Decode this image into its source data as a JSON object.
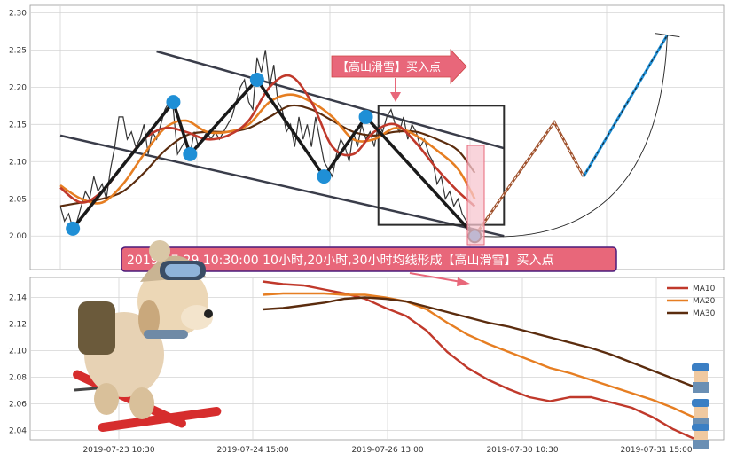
{
  "colors": {
    "price": "#333333",
    "ma10": "#c0392b",
    "ma20": "#e67e22",
    "ma30": "#5b2c0e",
    "zigzag": "#1a1a1a",
    "pivot": "#1f8fd6",
    "channel": "#3a3d4a",
    "annotation_fill": "#e8677a",
    "annotation_border": "#4a1a7a",
    "forecast_brown": "#a0522d",
    "forecast_blue": "#1f8fd6"
  },
  "annotations": {
    "top_label": "【高山滑雪】买入点",
    "bottom_label": "2019-07-29 10:30:00 10小时,20小时,30小时均线形成【高山滑雪】买入点"
  },
  "chart_data": [
    {
      "type": "line",
      "panel": "upper",
      "ylim": [
        1.955,
        2.31
      ],
      "yticks": [
        "2.30",
        "2.25",
        "2.20",
        "2.15",
        "2.10",
        "2.05",
        "2.00"
      ],
      "x_range": [
        0,
        100
      ],
      "series": [
        {
          "key": "price",
          "x": [
            0,
            1,
            2,
            3,
            4,
            5,
            6,
            7,
            8,
            9,
            10,
            11,
            12,
            13,
            14,
            15,
            16,
            17,
            18,
            19,
            20,
            21,
            22,
            23,
            24,
            25,
            26,
            27,
            28,
            29,
            30,
            31,
            32,
            33,
            34,
            35,
            36,
            37,
            38,
            39,
            40,
            41,
            42,
            43,
            44,
            45,
            46,
            47,
            48,
            49,
            50,
            51,
            52,
            53,
            54,
            55,
            56,
            57,
            58,
            59,
            60,
            61,
            62,
            63,
            64,
            65,
            66,
            67,
            68,
            69,
            70,
            71,
            72,
            73,
            74,
            75,
            76,
            77,
            78,
            79,
            80,
            81,
            82,
            83,
            84,
            85,
            86,
            87,
            88,
            89,
            90,
            91,
            92,
            93,
            94,
            95,
            96,
            97,
            98,
            99
          ],
          "y": [
            2.04,
            2.02,
            2.03,
            2.01,
            2.02,
            2.04,
            2.06,
            2.05,
            2.08,
            2.06,
            2.07,
            2.05,
            2.09,
            2.12,
            2.16,
            2.16,
            2.13,
            2.14,
            2.12,
            2.13,
            2.15,
            2.11,
            2.14,
            2.13,
            2.15,
            2.17,
            2.18,
            2.17,
            2.11,
            2.12,
            2.13,
            2.11,
            2.14,
            2.12,
            2.13,
            2.14,
            2.13,
            2.14,
            2.13,
            2.14,
            2.15,
            2.16,
            2.18,
            2.2,
            2.21,
            2.18,
            2.17,
            2.24,
            2.22,
            2.25,
            2.2,
            2.23,
            2.18,
            2.17,
            2.14,
            2.15,
            2.12,
            2.16,
            2.13,
            2.15,
            2.12,
            2.16,
            2.13,
            2.1,
            2.09,
            2.08,
            2.11,
            2.13,
            2.12,
            2.1,
            2.14,
            2.12,
            2.15,
            2.13,
            2.14,
            2.12,
            2.15,
            2.14,
            2.16,
            2.17,
            2.15,
            2.14,
            2.16,
            2.13,
            2.15,
            2.14,
            2.12,
            2.13,
            2.11,
            2.1,
            2.07,
            2.08,
            2.05,
            2.06,
            2.04,
            2.05,
            2.03,
            2.02,
            2.01,
            2.0
          ]
        },
        {
          "key": "ma10",
          "x": [
            0,
            5,
            10,
            15,
            20,
            25,
            30,
            35,
            40,
            45,
            50,
            55,
            60,
            65,
            70,
            75,
            80,
            85,
            90,
            95,
            99
          ],
          "y": [
            2.065,
            2.045,
            2.06,
            2.095,
            2.13,
            2.145,
            2.14,
            2.13,
            2.135,
            2.155,
            2.2,
            2.215,
            2.18,
            2.12,
            2.11,
            2.14,
            2.15,
            2.125,
            2.09,
            2.06,
            2.04
          ]
        },
        {
          "key": "ma20",
          "x": [
            0,
            5,
            10,
            15,
            20,
            25,
            30,
            35,
            40,
            45,
            50,
            55,
            60,
            65,
            70,
            75,
            80,
            85,
            90,
            95,
            99
          ],
          "y": [
            2.068,
            2.05,
            2.045,
            2.07,
            2.11,
            2.145,
            2.155,
            2.14,
            2.14,
            2.15,
            2.18,
            2.19,
            2.18,
            2.16,
            2.13,
            2.13,
            2.145,
            2.135,
            2.115,
            2.09,
            2.05
          ]
        },
        {
          "key": "ma30",
          "x": [
            0,
            5,
            10,
            15,
            20,
            25,
            30,
            35,
            40,
            45,
            50,
            55,
            60,
            65,
            70,
            75,
            80,
            85,
            90,
            95,
            99
          ],
          "y": [
            2.04,
            2.045,
            2.05,
            2.06,
            2.085,
            2.115,
            2.135,
            2.14,
            2.14,
            2.145,
            2.16,
            2.175,
            2.17,
            2.155,
            2.14,
            2.135,
            2.14,
            2.14,
            2.13,
            2.115,
            2.085
          ]
        }
      ],
      "zigzag": {
        "x": [
          3,
          27,
          31,
          47,
          63,
          73,
          99
        ],
        "y": [
          2.01,
          2.18,
          2.11,
          2.21,
          2.08,
          2.16,
          2.0
        ]
      },
      "channel": {
        "upper": {
          "x": [
            23,
            106
          ],
          "y": [
            2.248,
            2.118
          ]
        },
        "lower": {
          "x": [
            0,
            106
          ],
          "y": [
            2.135,
            2.0
          ]
        }
      },
      "box": {
        "x": [
          76,
          106
        ],
        "y": [
          2.015,
          2.175
        ]
      },
      "forecast": {
        "brown": {
          "x": [
            99,
            118,
            125
          ],
          "y": [
            2.0,
            2.153,
            2.08
          ]
        },
        "blue": {
          "x": [
            125,
            145
          ],
          "y": [
            2.08,
            2.27
          ]
        },
        "curve_start": {
          "x": 99,
          "y": 2.0
        }
      }
    },
    {
      "type": "line",
      "panel": "lower",
      "ylim": [
        2.033,
        2.155
      ],
      "yticks": [
        "2.14",
        "2.12",
        "2.10",
        "2.08",
        "2.06",
        "2.04"
      ],
      "xticks": [
        "2019-07-23 10:30",
        "2019-07-24 15:00",
        "2019-07-26 13:00",
        "2019-07-30 10:30",
        "2019-07-31 15:00"
      ],
      "legend": [
        "MA10",
        "MA20",
        "MA30"
      ],
      "legend_position": "top-right",
      "series": [
        {
          "key": "ma10",
          "name": "MA10",
          "x": [
            0,
            4,
            8,
            12,
            16,
            20,
            24,
            28,
            32,
            36,
            40,
            44,
            48,
            52,
            56,
            60,
            64,
            68,
            72,
            76,
            80,
            84
          ],
          "y": [
            2.152,
            2.15,
            2.149,
            2.146,
            2.143,
            2.139,
            2.132,
            2.126,
            2.115,
            2.099,
            2.087,
            2.078,
            2.071,
            2.065,
            2.062,
            2.065,
            2.065,
            2.061,
            2.057,
            2.05,
            2.041,
            2.034
          ]
        },
        {
          "key": "ma20",
          "name": "MA20",
          "x": [
            0,
            4,
            8,
            12,
            16,
            20,
            24,
            28,
            32,
            36,
            40,
            44,
            48,
            52,
            56,
            60,
            64,
            68,
            72,
            76,
            80,
            84
          ],
          "y": [
            2.142,
            2.143,
            2.143,
            2.143,
            2.142,
            2.142,
            2.14,
            2.137,
            2.131,
            2.121,
            2.112,
            2.105,
            2.099,
            2.093,
            2.087,
            2.083,
            2.078,
            2.073,
            2.068,
            2.063,
            2.057,
            2.05
          ]
        },
        {
          "key": "ma30",
          "name": "MA30",
          "x": [
            0,
            4,
            8,
            12,
            16,
            20,
            24,
            28,
            32,
            36,
            40,
            44,
            48,
            52,
            56,
            60,
            64,
            68,
            72,
            76,
            80,
            84
          ],
          "y": [
            2.131,
            2.132,
            2.134,
            2.136,
            2.139,
            2.14,
            2.139,
            2.137,
            2.133,
            2.129,
            2.125,
            2.121,
            2.118,
            2.114,
            2.11,
            2.106,
            2.102,
            2.097,
            2.091,
            2.085,
            2.079,
            2.073
          ]
        }
      ]
    }
  ]
}
